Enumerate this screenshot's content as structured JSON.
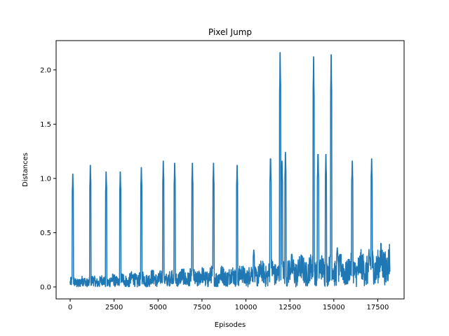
{
  "chart_data": {
    "type": "line",
    "title": "Pixel Jump",
    "xlabel": "Episodes",
    "ylabel": "Distances",
    "xlim": [
      -800,
      19000
    ],
    "ylim": [
      -0.11,
      2.27
    ],
    "x_ticks": [
      0,
      2500,
      5000,
      7500,
      10000,
      12500,
      15000,
      17500
    ],
    "x_tick_labels": [
      "0",
      "2500",
      "5000",
      "7500",
      "10000",
      "12500",
      "15000",
      "17500"
    ],
    "y_ticks": [
      0.0,
      0.5,
      1.0,
      1.5,
      2.0
    ],
    "y_tick_labels": [
      "0.0",
      "0.5",
      "1.0",
      "1.5",
      "2.0"
    ],
    "grid": false,
    "legend": "none",
    "series": [
      {
        "color": "#1f77b4",
        "x_range": [
          0,
          18200
        ],
        "baseline": [
          [
            0,
            0.04
          ],
          [
            2000,
            0.05
          ],
          [
            4000,
            0.07
          ],
          [
            6000,
            0.08
          ],
          [
            8000,
            0.09
          ],
          [
            10000,
            0.1
          ],
          [
            11500,
            0.13
          ],
          [
            12500,
            0.15
          ],
          [
            14000,
            0.15
          ],
          [
            16000,
            0.15
          ],
          [
            18200,
            0.22
          ]
        ],
        "spikes": [
          {
            "x": 150,
            "y": 1.04
          },
          {
            "x": 1150,
            "y": 1.12
          },
          {
            "x": 2050,
            "y": 1.06
          },
          {
            "x": 2850,
            "y": 1.06
          },
          {
            "x": 4050,
            "y": 1.1
          },
          {
            "x": 5300,
            "y": 1.16
          },
          {
            "x": 5950,
            "y": 1.14
          },
          {
            "x": 6950,
            "y": 1.14
          },
          {
            "x": 8150,
            "y": 1.14
          },
          {
            "x": 9500,
            "y": 1.12
          },
          {
            "x": 10450,
            "y": 0.34
          },
          {
            "x": 11400,
            "y": 1.18
          },
          {
            "x": 11950,
            "y": 2.16
          },
          {
            "x": 12050,
            "y": 1.16
          },
          {
            "x": 12250,
            "y": 1.24
          },
          {
            "x": 13850,
            "y": 2.12
          },
          {
            "x": 14100,
            "y": 1.22
          },
          {
            "x": 14550,
            "y": 1.22
          },
          {
            "x": 14850,
            "y": 2.14
          },
          {
            "x": 15200,
            "y": 0.36
          },
          {
            "x": 16050,
            "y": 1.16
          },
          {
            "x": 17150,
            "y": 1.18
          }
        ]
      }
    ]
  }
}
